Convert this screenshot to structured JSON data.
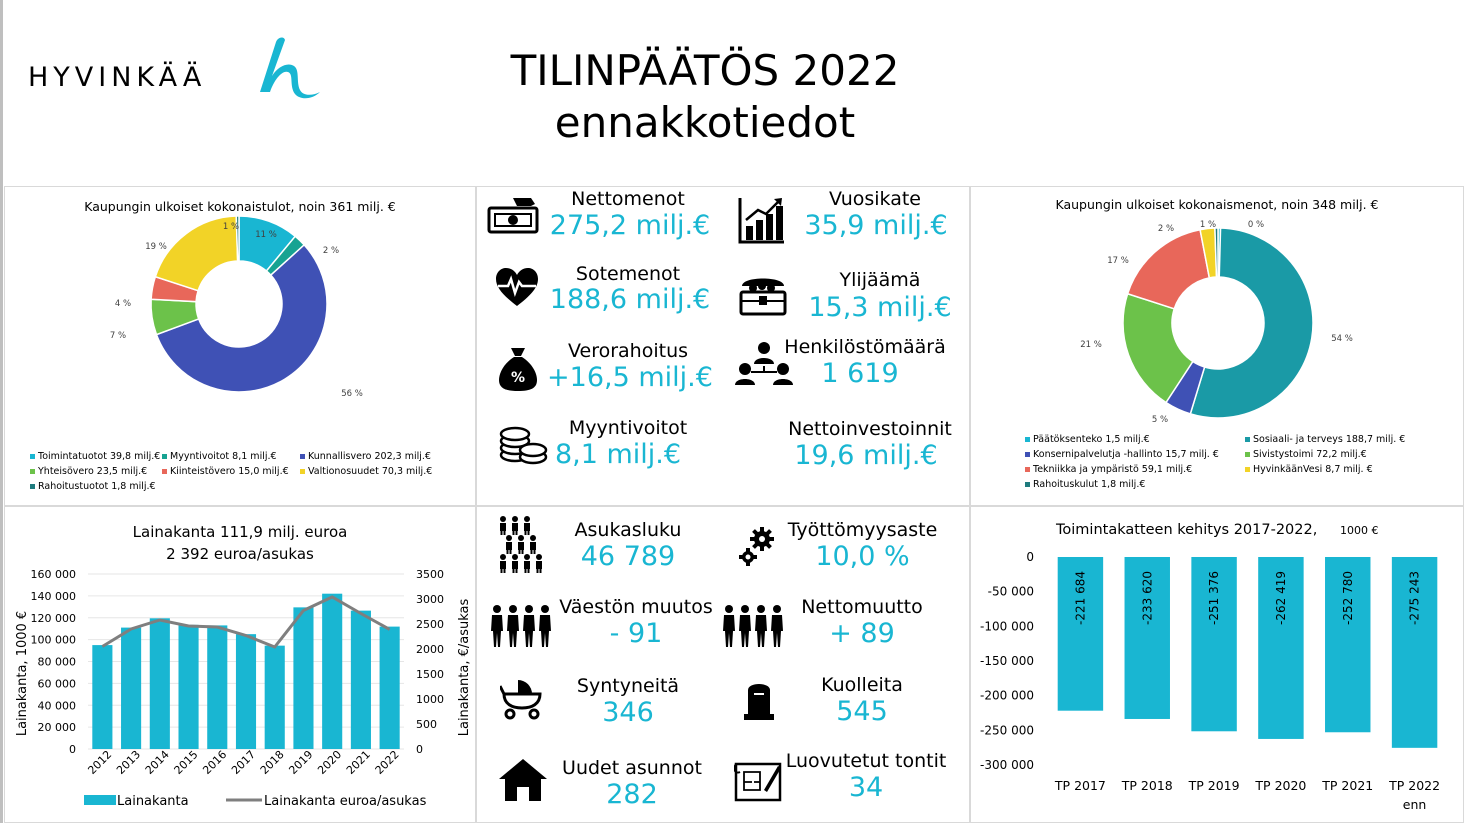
{
  "header": {
    "logo_text": "HYVINKÄÄ",
    "title_line1": "TILINPÄÄTÖS 2022",
    "title_line2": "ennakkotiedot"
  },
  "colors": {
    "accent": "#19b6d2",
    "bar": "#19b6d2",
    "line": "#7f7f7f"
  },
  "kpis_finance": [
    {
      "icon": "money-icon",
      "label": "Nettomenot",
      "value": "275,2 milj.€"
    },
    {
      "icon": "chart-growth-icon",
      "label": "Vuosikate",
      "value": "35,9 milj.€"
    },
    {
      "icon": "heart-pulse-icon",
      "label": "Sotemenot",
      "value": "188,6 milj.€"
    },
    {
      "icon": "treasure-chest-icon",
      "label": "Ylijäämä",
      "value": "15,3 milj.€"
    },
    {
      "icon": "money-bag-icon",
      "label": "Verorahoitus",
      "value": "+16,5 milj.€"
    },
    {
      "icon": "people-network-icon",
      "label": "Henkilöstömäärä",
      "value": "1 619"
    },
    {
      "icon": "coins-icon",
      "label": "Myyntivoitot",
      "value": "8,1 milj.€"
    },
    {
      "icon": "",
      "label": "Nettoinvestoinnit",
      "value": "19,6 milj.€"
    }
  ],
  "kpis_population": [
    {
      "icon": "crowd-icon",
      "label": "Asukasluku",
      "value": "46 789"
    },
    {
      "icon": "gears-icon",
      "label": "Työttömyysaste",
      "value": "10,0 %"
    },
    {
      "icon": "people-row-icon",
      "label": "Väestön muutos",
      "value": "- 91"
    },
    {
      "icon": "people-row-icon",
      "label": "Nettomuutto",
      "value": "+ 89"
    },
    {
      "icon": "stroller-icon",
      "label": "Syntyneitä",
      "value": "346"
    },
    {
      "icon": "gravestone-icon",
      "label": "Kuolleita",
      "value": "545"
    },
    {
      "icon": "house-icon",
      "label": "Uudet asunnot",
      "value": "282"
    },
    {
      "icon": "blueprint-icon",
      "label": "Luovutetut tontit",
      "value": "34"
    }
  ],
  "chart_data": [
    {
      "type": "pie",
      "title": "Kaupungin ulkoiset kokonaistulot, noin 361 milj. €",
      "categories": [
        "Toimintatuotot 39,8 milj.€",
        "Myyntivoitot 8,1 milj.€",
        "Kunnallisvero 202,3 milj.€",
        "Yhteisövero 23,5 milj.€",
        "Kiinteistövero 15,0 milj.€",
        "Valtionosuudet 70,3 milj.€",
        "Rahoitustuotot 1,8 milj.€"
      ],
      "values": [
        39.8,
        8.1,
        202.3,
        23.5,
        15.0,
        70.3,
        1.8
      ],
      "percent_labels": [
        "11 %",
        "2 %",
        "56 %",
        "7 %",
        "4 %",
        "19 %",
        "1 %"
      ],
      "colors": [
        "#19b6d2",
        "#17a392",
        "#3f51b5",
        "#6cc24a",
        "#e8675a",
        "#f2d327",
        "#1f7b7e"
      ],
      "legend_position": "bottom"
    },
    {
      "type": "pie",
      "title": "Kaupungin ulkoiset kokonaismenot, noin 348 milj. €",
      "categories": [
        "Päätöksenteko 1,5 milj.€",
        "Sosiaali- ja terveys 188,7 milj. €",
        "Konsernipalvelutja -hallinto 15,7 milj. €",
        "Sivistystoimi 72,2 milj.€",
        "Tekniikka ja ympäristö 59,1 milj.€",
        "HyvinkäänVesi 8,7 milj. €",
        "Rahoituskulut 1,8 milj.€"
      ],
      "values": [
        1.5,
        188.7,
        15.7,
        72.2,
        59.1,
        8.7,
        1.8
      ],
      "percent_labels": [
        "0 %",
        "54 %",
        "5 %",
        "21 %",
        "17 %",
        "2 %",
        "1 %"
      ],
      "colors": [
        "#19b6d2",
        "#1a9aa6",
        "#3f51b5",
        "#6cc24a",
        "#e8675a",
        "#f2d327",
        "#1f7b7e"
      ],
      "legend_position": "bottom"
    },
    {
      "type": "bar",
      "title": "Lainakanta 111,9 milj. euroa",
      "subtitle": "2 392 euroa/asukas",
      "categories": [
        "2012",
        "2013",
        "2014",
        "2015",
        "2016",
        "2017",
        "2018",
        "2019",
        "2020",
        "2021",
        "2022"
      ],
      "series": [
        {
          "name": "Lainakanta",
          "type": "bar",
          "axis": "left",
          "values": [
            95000,
            111000,
            119500,
            113500,
            113000,
            105000,
            94500,
            129500,
            142000,
            126500,
            111900
          ]
        },
        {
          "name": "Lainakanta euroa/asukas",
          "type": "line",
          "axis": "right",
          "values": [
            2050,
            2400,
            2580,
            2460,
            2440,
            2270,
            2040,
            2770,
            3040,
            2710,
            2392
          ]
        }
      ],
      "ylabel": "Lainakanta, 1000 €",
      "y2label": "Lainakanta, €/asukas",
      "ylim": [
        0,
        160000
      ],
      "y2lim": [
        0,
        3500
      ],
      "yticks": [
        "0",
        "20 000",
        "40 000",
        "60 000",
        "80 000",
        "100 000",
        "120 000",
        "140 000",
        "160 000"
      ],
      "y2ticks": [
        "0",
        "500",
        "1000",
        "1500",
        "2000",
        "2500",
        "3000",
        "3500"
      ],
      "legend_position": "bottom"
    },
    {
      "type": "bar",
      "title": "Toimintakatteen kehitys 2017-2022,",
      "title_unit": "1000 €",
      "categories": [
        "TP 2017",
        "TP 2018",
        "TP 2019",
        "TP 2020",
        "TP 2021",
        "TP 2022 enn"
      ],
      "values": [
        -221684,
        -233620,
        -251376,
        -262419,
        -252780,
        -275243
      ],
      "data_labels": [
        "-221 684",
        "-233 620",
        "-251 376",
        "-262 419",
        "-252 780",
        "-275 243"
      ],
      "ylim": [
        -300000,
        0
      ],
      "yticks": [
        "0",
        "-50 000",
        "-100 000",
        "-150 000",
        "-200 000",
        "-250 000",
        "-300 000"
      ]
    }
  ]
}
